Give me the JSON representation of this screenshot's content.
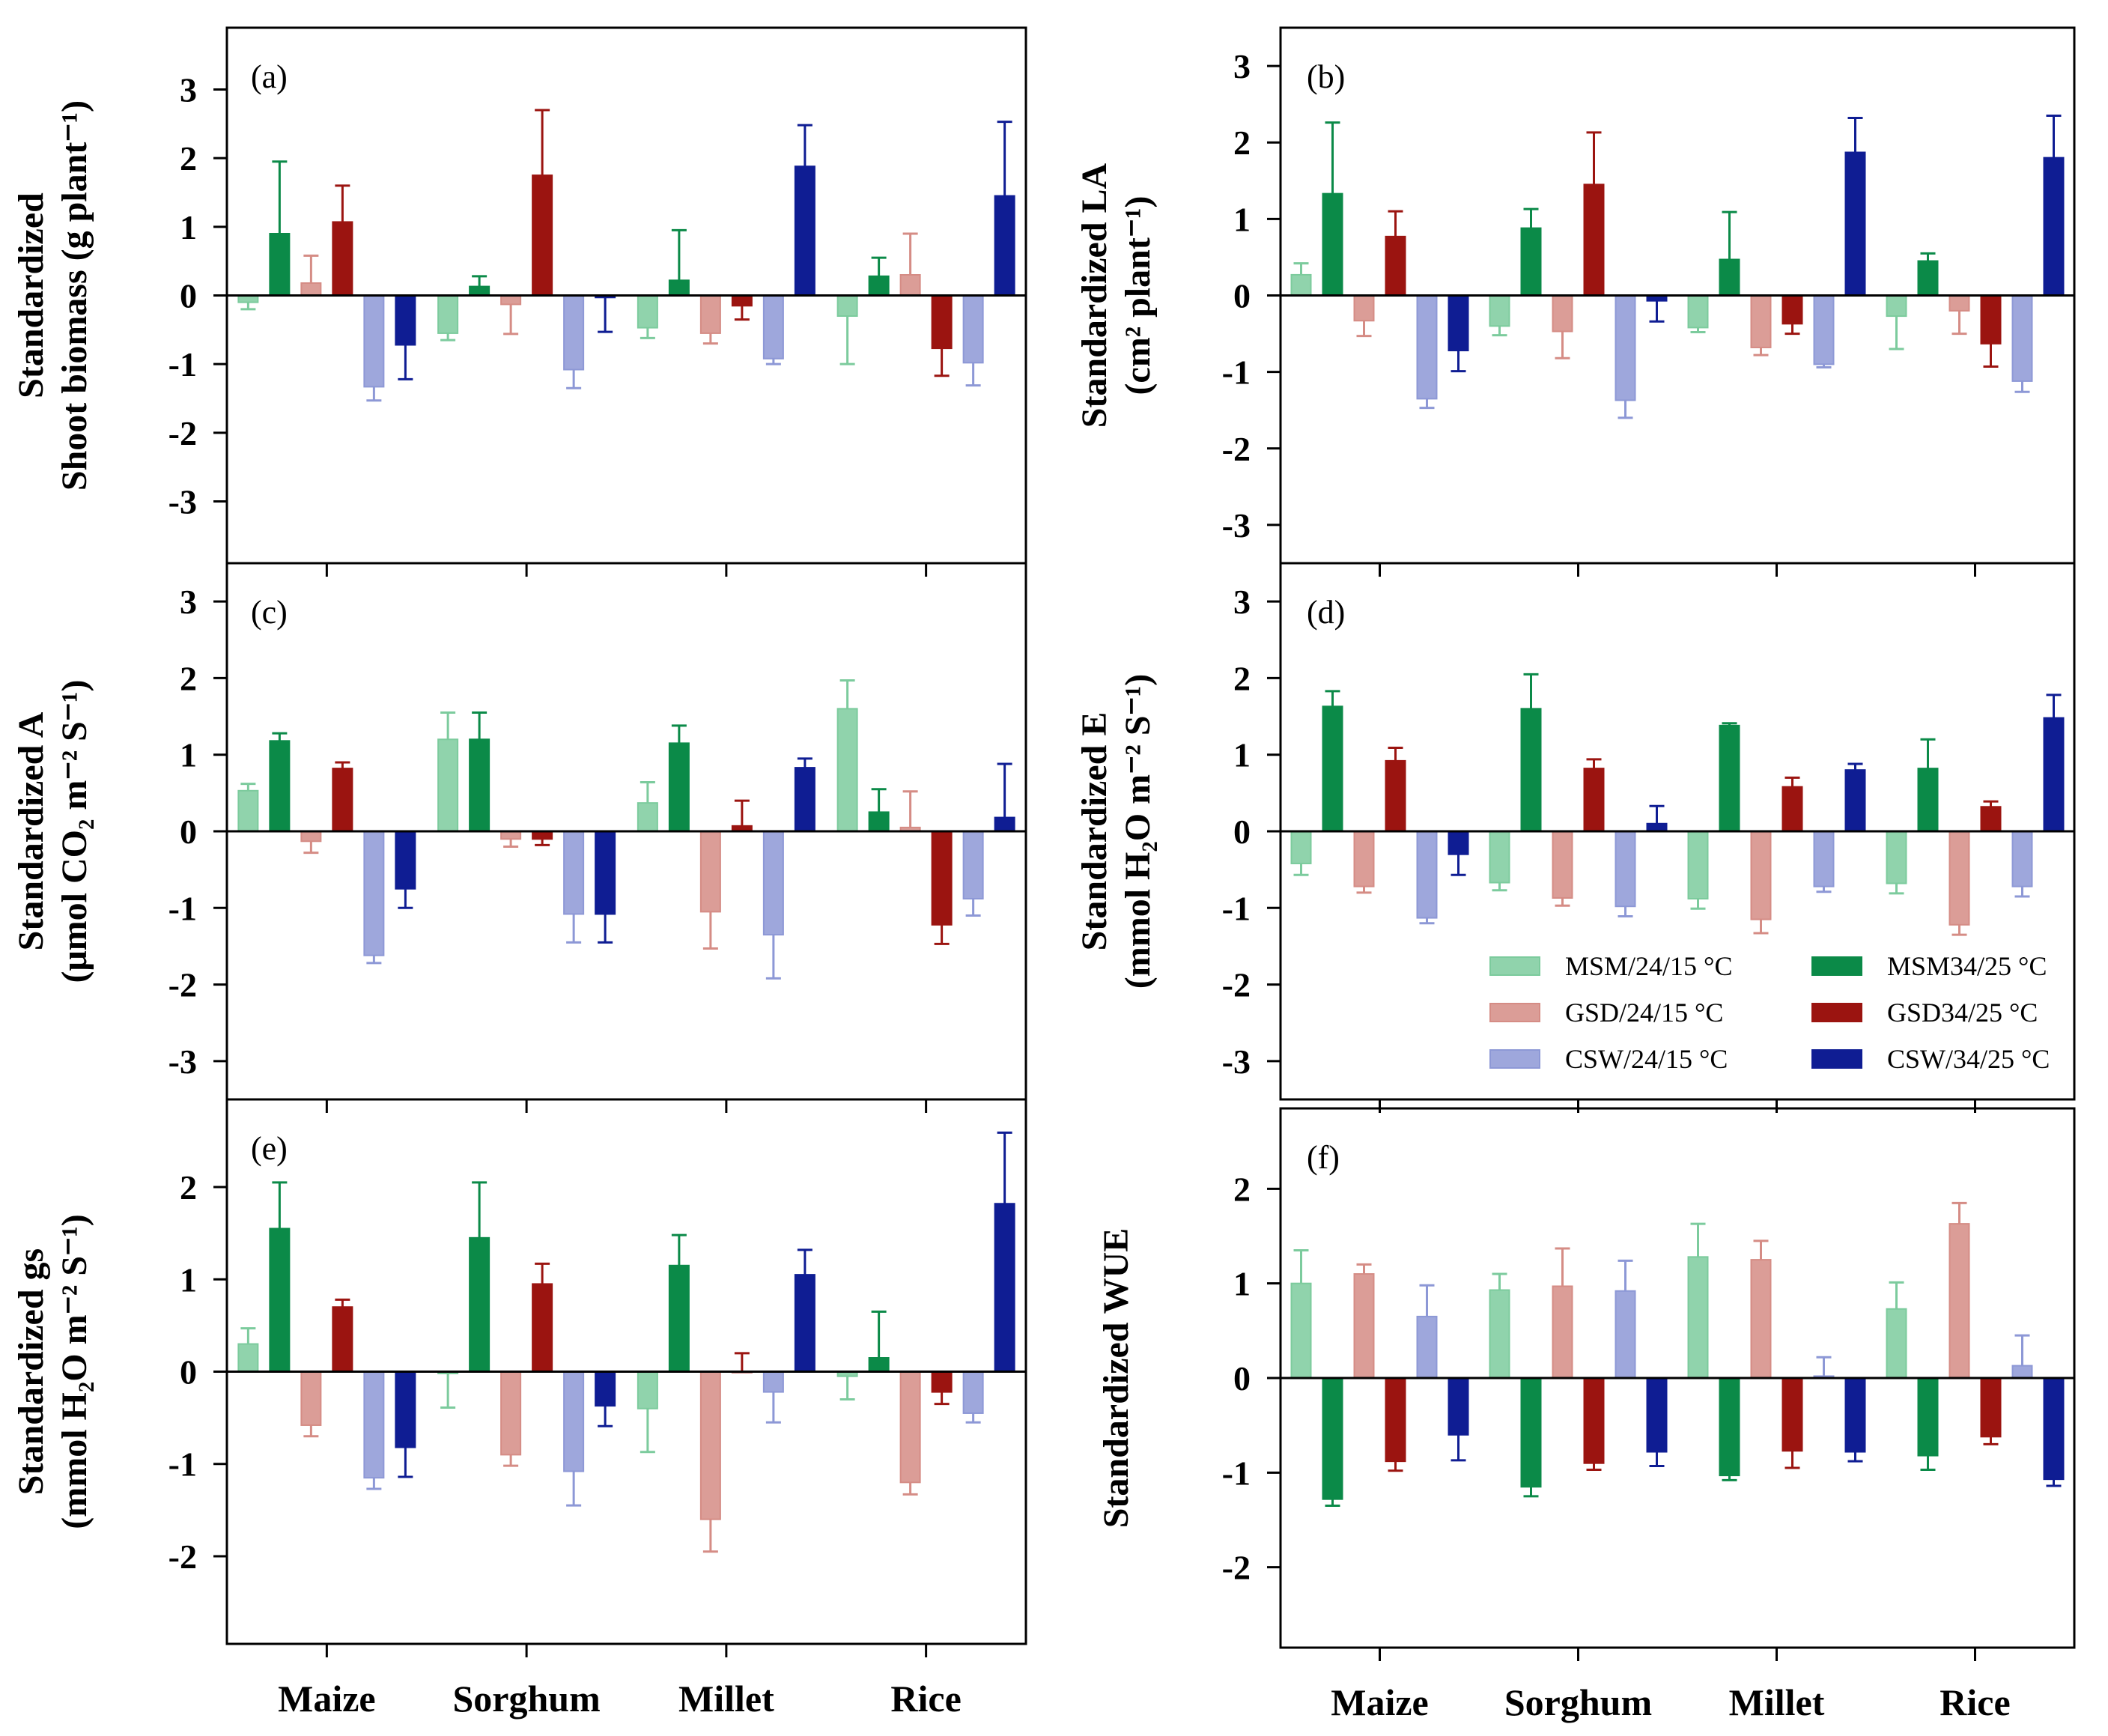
{
  "legend": [
    {
      "label": "MSM/24/15 °C",
      "color": "#7ccb9d"
    },
    {
      "label": "MSM34/25 °C",
      "color": "#0b8a48"
    },
    {
      "label": "GSD/24/15 °C",
      "color": "#d58c85"
    },
    {
      "label": "GSD34/25 °C",
      "color": "#9b1410"
    },
    {
      "label": "CSW/24/15 °C",
      "color": "#8d98d6"
    },
    {
      "label": "CSW/34/25 °C",
      "color": "#0f1d93"
    }
  ],
  "categories": [
    "Maize",
    "Sorghum",
    "Millet",
    "Rice"
  ],
  "chart_data": [
    {
      "type": "bar",
      "id": "a",
      "tag": "(a)",
      "ylabel_lines": [
        "Standardized",
        "Shoot biomass (g plant⁻¹)"
      ],
      "ylim": [
        -3.9,
        3.9
      ],
      "yticks": [
        -3,
        -2,
        -1,
        0,
        1,
        2,
        3
      ],
      "categories": [
        "Maize",
        "Sorghum",
        "Millet",
        "Rice"
      ],
      "series": [
        {
          "name": "MSM/24/15 °C",
          "values": [
            -0.1,
            -0.55,
            -0.47,
            -0.3
          ],
          "errors": [
            0.1,
            0.1,
            0.15,
            0.7
          ]
        },
        {
          "name": "MSM34/25 °C",
          "values": [
            0.9,
            0.13,
            0.22,
            0.28
          ],
          "errors": [
            1.05,
            0.15,
            0.73,
            0.27
          ]
        },
        {
          "name": "GSD/24/15 °C",
          "values": [
            0.18,
            -0.13,
            -0.55,
            0.3
          ],
          "errors": [
            0.4,
            0.43,
            0.15,
            0.6
          ]
        },
        {
          "name": "GSD34/25 °C",
          "values": [
            1.07,
            1.75,
            -0.15,
            -0.77
          ],
          "errors": [
            0.53,
            0.95,
            0.2,
            0.4
          ]
        },
        {
          "name": "CSW/24/15 °C",
          "values": [
            -1.33,
            -1.08,
            -0.92,
            -0.98
          ],
          "errors": [
            0.2,
            0.27,
            0.08,
            0.33
          ]
        },
        {
          "name": "CSW/34/25 °C",
          "values": [
            -0.72,
            -0.03,
            1.88,
            1.45
          ],
          "errors": [
            0.5,
            0.5,
            0.6,
            1.08
          ]
        }
      ]
    },
    {
      "type": "bar",
      "id": "b",
      "tag": "(b)",
      "ylabel_lines": [
        "Standardized LA",
        "(cm² plant⁻¹)"
      ],
      "ylim": [
        -3.5,
        3.5
      ],
      "yticks": [
        -3,
        -2,
        -1,
        0,
        1,
        2,
        3
      ],
      "categories": [
        "Maize",
        "Sorghum",
        "Millet",
        "Rice"
      ],
      "series": [
        {
          "name": "MSM/24/15 °C",
          "values": [
            0.27,
            -0.4,
            -0.42,
            -0.27
          ],
          "errors": [
            0.15,
            0.12,
            0.06,
            0.43
          ]
        },
        {
          "name": "MSM34/25 °C",
          "values": [
            1.33,
            0.88,
            0.47,
            0.45
          ],
          "errors": [
            0.93,
            0.25,
            0.62,
            0.1
          ]
        },
        {
          "name": "GSD/24/15 °C",
          "values": [
            -0.33,
            -0.47,
            -0.68,
            -0.2
          ],
          "errors": [
            0.2,
            0.35,
            0.1,
            0.3
          ]
        },
        {
          "name": "GSD34/25 °C",
          "values": [
            0.77,
            1.45,
            -0.37,
            -0.63
          ],
          "errors": [
            0.33,
            0.68,
            0.13,
            0.3
          ]
        },
        {
          "name": "CSW/24/15 °C",
          "values": [
            -1.35,
            -1.37,
            -0.9,
            -1.12
          ],
          "errors": [
            0.12,
            0.23,
            0.04,
            0.14
          ]
        },
        {
          "name": "CSW/34/25 °C",
          "values": [
            -0.72,
            -0.07,
            1.87,
            1.8
          ],
          "errors": [
            0.27,
            0.27,
            0.45,
            0.55
          ]
        }
      ]
    },
    {
      "type": "bar",
      "id": "c",
      "tag": "(c)",
      "ylabel_lines": [
        "Standardized A",
        "(μmol CO₂ m⁻² S⁻¹)"
      ],
      "ylim": [
        -3.5,
        3.5
      ],
      "yticks": [
        -3,
        -2,
        -1,
        0,
        1,
        2,
        3
      ],
      "categories": [
        "Maize",
        "Sorghum",
        "Millet",
        "Rice"
      ],
      "series": [
        {
          "name": "MSM/24/15 °C",
          "values": [
            0.53,
            1.2,
            0.37,
            1.6
          ],
          "errors": [
            0.09,
            0.35,
            0.27,
            0.37
          ]
        },
        {
          "name": "MSM34/25 °C",
          "values": [
            1.18,
            1.2,
            1.15,
            0.25
          ],
          "errors": [
            0.1,
            0.35,
            0.23,
            0.3
          ]
        },
        {
          "name": "GSD/24/15 °C",
          "values": [
            -0.13,
            -0.1,
            -1.05,
            0.05
          ],
          "errors": [
            0.15,
            0.1,
            0.48,
            0.47
          ]
        },
        {
          "name": "GSD34/25 °C",
          "values": [
            0.82,
            -0.1,
            0.07,
            -1.22
          ],
          "errors": [
            0.08,
            0.08,
            0.33,
            0.25
          ]
        },
        {
          "name": "CSW/24/15 °C",
          "values": [
            -1.62,
            -1.08,
            -1.35,
            -0.88
          ],
          "errors": [
            0.1,
            0.37,
            0.57,
            0.22
          ]
        },
        {
          "name": "CSW/34/25 °C",
          "values": [
            -0.75,
            -1.08,
            0.83,
            0.18
          ],
          "errors": [
            0.25,
            0.37,
            0.12,
            0.7
          ]
        }
      ]
    },
    {
      "type": "bar",
      "id": "d",
      "tag": "(d)",
      "ylabel_lines": [
        "Standardized E",
        "(mmol H₂O m⁻² S⁻¹)"
      ],
      "ylim": [
        -3.5,
        3.5
      ],
      "yticks": [
        -3,
        -2,
        -1,
        0,
        1,
        2,
        3
      ],
      "categories": [
        "Maize",
        "Sorghum",
        "Millet",
        "Rice"
      ],
      "series": [
        {
          "name": "MSM/24/15 °C",
          "values": [
            -0.42,
            -0.67,
            -0.88,
            -0.68
          ],
          "errors": [
            0.15,
            0.1,
            0.13,
            0.13
          ]
        },
        {
          "name": "MSM34/25 °C",
          "values": [
            1.63,
            1.6,
            1.38,
            0.82
          ],
          "errors": [
            0.2,
            0.45,
            0.03,
            0.38
          ]
        },
        {
          "name": "GSD/24/15 °C",
          "values": [
            -0.72,
            -0.87,
            -1.15,
            -1.22
          ],
          "errors": [
            0.08,
            0.1,
            0.18,
            0.13
          ]
        },
        {
          "name": "GSD34/25 °C",
          "values": [
            0.92,
            0.82,
            0.58,
            0.32
          ],
          "errors": [
            0.17,
            0.12,
            0.12,
            0.07
          ]
        },
        {
          "name": "CSW/24/15 °C",
          "values": [
            -1.13,
            -0.98,
            -0.72,
            -0.72
          ],
          "errors": [
            0.07,
            0.13,
            0.07,
            0.13
          ]
        },
        {
          "name": "CSW/34/25 °C",
          "values": [
            -0.3,
            0.1,
            0.8,
            1.48
          ],
          "errors": [
            0.27,
            0.23,
            0.08,
            0.3
          ]
        }
      ]
    },
    {
      "type": "bar",
      "id": "e",
      "tag": "(e)",
      "ylabel_lines": [
        "Standardized gs",
        "(mmol H₂O m⁻² S⁻¹)"
      ],
      "ylim": [
        -2.95,
        2.95
      ],
      "yticks": [
        -2,
        -1,
        0,
        1,
        2
      ],
      "categories": [
        "Maize",
        "Sorghum",
        "Millet",
        "Rice"
      ],
      "series": [
        {
          "name": "MSM/24/15 °C",
          "values": [
            0.3,
            -0.02,
            -0.4,
            -0.05
          ],
          "errors": [
            0.17,
            0.37,
            0.47,
            0.25
          ]
        },
        {
          "name": "MSM34/25 °C",
          "values": [
            1.55,
            1.45,
            1.15,
            0.15
          ],
          "errors": [
            0.5,
            0.6,
            0.33,
            0.5
          ]
        },
        {
          "name": "GSD/24/15 °C",
          "values": [
            -0.58,
            -0.9,
            -1.6,
            -1.2
          ],
          "errors": [
            0.12,
            0.12,
            0.35,
            0.13
          ]
        },
        {
          "name": "GSD34/25 °C",
          "values": [
            0.7,
            0.95,
            0.0,
            -0.22
          ],
          "errors": [
            0.08,
            0.22,
            0.2,
            0.13
          ]
        },
        {
          "name": "CSW/24/15 °C",
          "values": [
            -1.15,
            -1.08,
            -0.22,
            -0.45
          ],
          "errors": [
            0.12,
            0.37,
            0.33,
            0.1
          ]
        },
        {
          "name": "CSW/34/25 °C",
          "values": [
            -0.82,
            -0.37,
            1.05,
            1.82
          ],
          "errors": [
            0.32,
            0.22,
            0.27,
            0.77
          ]
        }
      ]
    },
    {
      "type": "bar",
      "id": "f",
      "tag": "(f)",
      "ylabel_lines": [
        "Standardized WUE"
      ],
      "ylim": [
        -2.85,
        2.85
      ],
      "yticks": [
        -2,
        -1,
        0,
        1,
        2
      ],
      "categories": [
        "Maize",
        "Sorghum",
        "Millet",
        "Rice"
      ],
      "series": [
        {
          "name": "MSM/24/15 °C",
          "values": [
            1.0,
            0.93,
            1.28,
            0.73
          ],
          "errors": [
            0.35,
            0.17,
            0.35,
            0.28
          ]
        },
        {
          "name": "MSM34/25 °C",
          "values": [
            -1.28,
            -1.15,
            -1.03,
            -0.82
          ],
          "errors": [
            0.07,
            0.1,
            0.05,
            0.15
          ]
        },
        {
          "name": "GSD/24/15 °C",
          "values": [
            1.1,
            0.97,
            1.25,
            1.63
          ],
          "errors": [
            0.1,
            0.4,
            0.2,
            0.22
          ]
        },
        {
          "name": "GSD34/25 °C",
          "values": [
            -0.88,
            -0.9,
            -0.77,
            -0.62
          ],
          "errors": [
            0.1,
            0.07,
            0.18,
            0.08
          ]
        },
        {
          "name": "CSW/24/15 °C",
          "values": [
            0.65,
            0.92,
            0.02,
            0.13
          ],
          "errors": [
            0.33,
            0.32,
            0.2,
            0.32
          ]
        },
        {
          "name": "CSW/34/25 °C",
          "values": [
            -0.6,
            -0.78,
            -0.78,
            -1.07
          ],
          "errors": [
            0.27,
            0.15,
            0.1,
            0.07
          ]
        }
      ]
    }
  ]
}
